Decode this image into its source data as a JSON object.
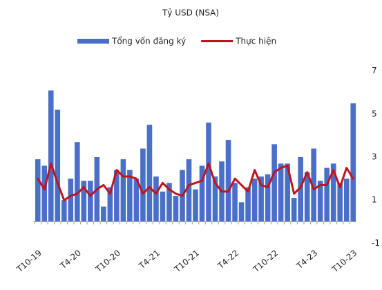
{
  "chart_data": {
    "type": "bar-line",
    "title": "Tỷ USD (NSA)",
    "categories": [
      "T10-19",
      null,
      null,
      null,
      null,
      null,
      "T4-20",
      null,
      null,
      null,
      null,
      null,
      "T10-20",
      null,
      null,
      null,
      null,
      null,
      "T4-21",
      null,
      null,
      null,
      null,
      null,
      "T10-21",
      null,
      null,
      null,
      null,
      null,
      "T4-22",
      null,
      null,
      null,
      null,
      null,
      "T10-22",
      null,
      null,
      null,
      null,
      null,
      "T4-23",
      null,
      null,
      null,
      null,
      null,
      "T10-23"
    ],
    "series": [
      {
        "name": "Tổng vốn đăng ký",
        "type": "bar",
        "color": "#4a6fc9",
        "values": [
          2.9,
          2.6,
          6.1,
          5.2,
          1.0,
          2.0,
          3.7,
          1.9,
          1.9,
          3.0,
          0.7,
          1.6,
          2.4,
          2.9,
          2.4,
          2.0,
          3.4,
          4.5,
          2.1,
          1.4,
          1.8,
          1.2,
          2.4,
          2.9,
          1.5,
          2.6,
          4.6,
          2.1,
          2.8,
          3.8,
          1.8,
          0.9,
          1.6,
          2.0,
          2.1,
          2.2,
          3.6,
          2.7,
          2.7,
          1.1,
          3.0,
          2.3,
          3.4,
          1.9,
          2.5,
          2.7,
          1.8,
          2.0,
          5.5
        ]
      },
      {
        "name": "Thực hiện",
        "type": "line",
        "color": "#c0141c",
        "values": [
          2.0,
          1.5,
          2.7,
          1.8,
          1.0,
          1.2,
          1.3,
          1.6,
          1.2,
          1.5,
          1.7,
          1.3,
          2.4,
          2.1,
          2.1,
          2.0,
          1.3,
          1.6,
          1.3,
          1.8,
          1.5,
          1.3,
          1.2,
          1.7,
          1.8,
          1.9,
          2.7,
          1.8,
          1.4,
          1.4,
          2.0,
          1.7,
          1.4,
          2.4,
          1.7,
          1.6,
          2.3,
          2.5,
          2.6,
          1.3,
          1.6,
          2.3,
          1.5,
          1.7,
          1.7,
          2.4,
          1.6,
          2.5,
          2.0
        ]
      }
    ],
    "ylim": [
      -1.6,
      7.6
    ],
    "yticks": [
      -1,
      1,
      3,
      5,
      7
    ],
    "y_axis_side": "right",
    "grid": false
  }
}
